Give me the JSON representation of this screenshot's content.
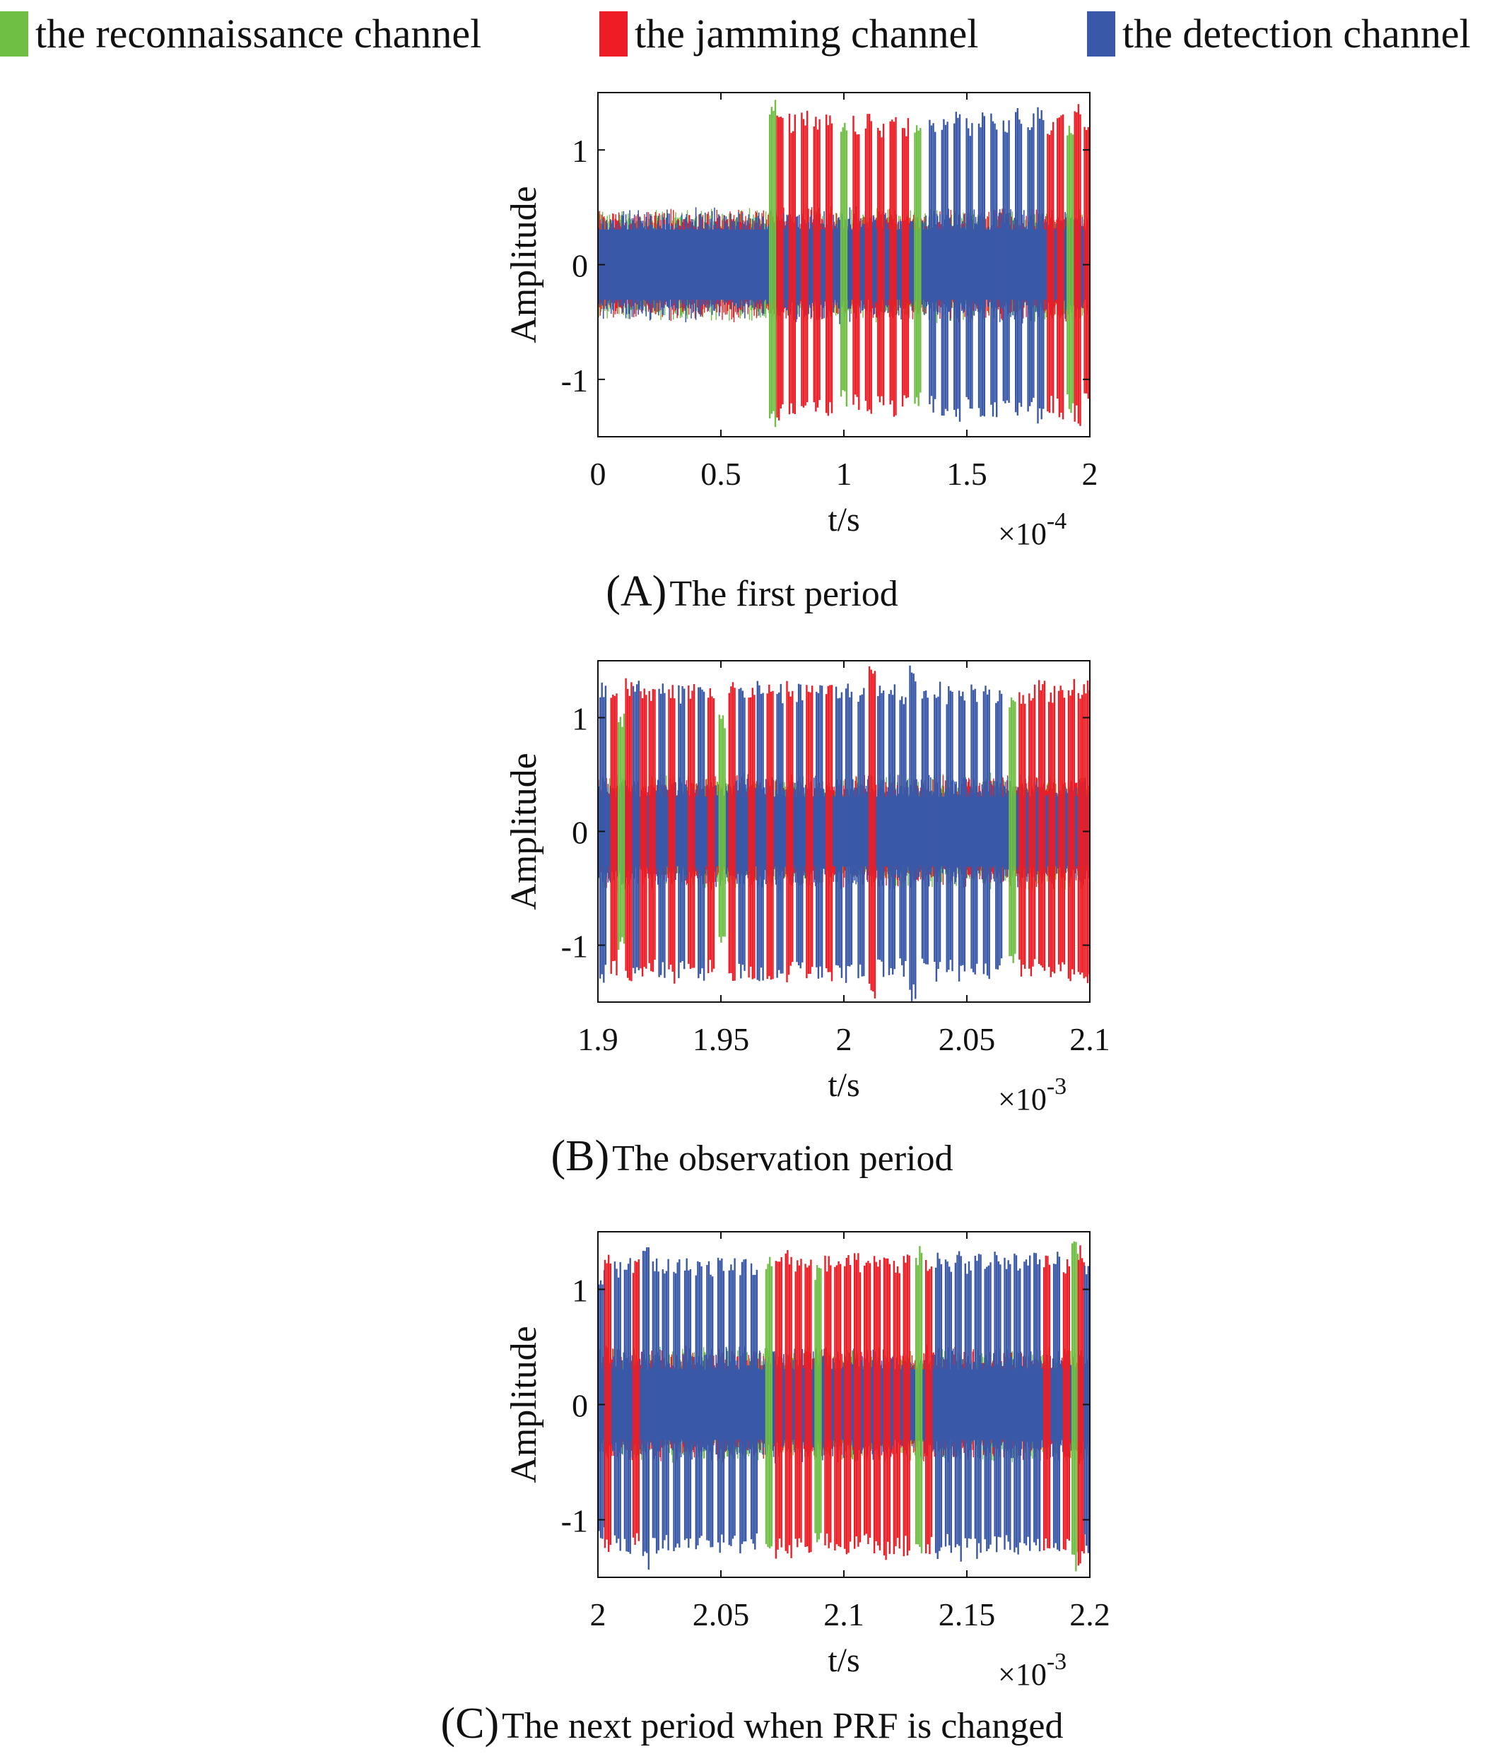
{
  "legend": {
    "items": [
      {
        "label": "the reconnaissance channel",
        "color": "#6fbf44"
      },
      {
        "label": "the jamming channel",
        "color": "#ee1c24"
      },
      {
        "label": "the detection channel",
        "color": "#3a58a8"
      }
    ]
  },
  "captions": [
    {
      "letter": "(A)",
      "text": "The first period"
    },
    {
      "letter": "(B)",
      "text": "The observation period"
    },
    {
      "letter": "(C)",
      "text": "The next period when PRF is changed"
    }
  ],
  "chart_data": [
    {
      "type": "line",
      "xlabel": "t/s",
      "ylabel": "Amplitude",
      "x_multiplier": "×10",
      "x_exponent": "-4",
      "xlim": [
        0,
        2
      ],
      "ylim": [
        -1.5,
        1.5
      ],
      "xticks": [
        0,
        0.5,
        1,
        1.5,
        2
      ],
      "xtick_labels": [
        "0",
        "0.5",
        "1",
        "1.5",
        "2"
      ],
      "yticks": [
        1,
        0,
        -1
      ],
      "ytick_labels": [
        "1",
        "0",
        "-1"
      ],
      "noise_amplitude": 0.45,
      "pulse_start": 0.7,
      "pulses": [
        {
          "series": "the reconnaissance channel",
          "x": 0.71,
          "amplitude": 1.45
        },
        {
          "series": "the jamming channel",
          "x": 0.74,
          "amplitude": 1.38
        },
        {
          "series": "the jamming channel",
          "x": 0.79,
          "amplitude": 1.32
        },
        {
          "series": "the jamming channel",
          "x": 0.84,
          "amplitude": 1.35
        },
        {
          "series": "the jamming channel",
          "x": 0.89,
          "amplitude": 1.3
        },
        {
          "series": "the jamming channel",
          "x": 0.94,
          "amplitude": 1.33
        },
        {
          "series": "the reconnaissance channel",
          "x": 1.0,
          "amplitude": 1.25
        },
        {
          "series": "the jamming channel",
          "x": 1.05,
          "amplitude": 1.3
        },
        {
          "series": "the jamming channel",
          "x": 1.1,
          "amplitude": 1.32
        },
        {
          "series": "the jamming channel",
          "x": 1.15,
          "amplitude": 1.28
        },
        {
          "series": "the jamming channel",
          "x": 1.2,
          "amplitude": 1.33
        },
        {
          "series": "the jamming channel",
          "x": 1.25,
          "amplitude": 1.3
        },
        {
          "series": "the reconnaissance channel",
          "x": 1.3,
          "amplitude": 1.25
        },
        {
          "series": "the detection channel",
          "x": 1.36,
          "amplitude": 1.3
        },
        {
          "series": "the detection channel",
          "x": 1.41,
          "amplitude": 1.33
        },
        {
          "series": "the detection channel",
          "x": 1.46,
          "amplitude": 1.38
        },
        {
          "series": "the detection channel",
          "x": 1.51,
          "amplitude": 1.3
        },
        {
          "series": "the detection channel",
          "x": 1.56,
          "amplitude": 1.33
        },
        {
          "series": "the detection channel",
          "x": 1.61,
          "amplitude": 1.35
        },
        {
          "series": "the detection channel",
          "x": 1.66,
          "amplitude": 1.3
        },
        {
          "series": "the detection channel",
          "x": 1.71,
          "amplitude": 1.38
        },
        {
          "series": "the detection channel",
          "x": 1.76,
          "amplitude": 1.32
        },
        {
          "series": "the detection channel",
          "x": 1.8,
          "amplitude": 1.4
        },
        {
          "series": "the jamming channel",
          "x": 1.84,
          "amplitude": 1.3
        },
        {
          "series": "the jamming channel",
          "x": 1.88,
          "amplitude": 1.35
        },
        {
          "series": "the reconnaissance channel",
          "x": 1.92,
          "amplitude": 1.3
        },
        {
          "series": "the jamming channel",
          "x": 1.95,
          "amplitude": 1.42
        },
        {
          "series": "the jamming channel",
          "x": 1.99,
          "amplitude": 1.3
        }
      ]
    },
    {
      "type": "line",
      "xlabel": "t/s",
      "ylabel": "Amplitude",
      "x_multiplier": "×10",
      "x_exponent": "-3",
      "xlim": [
        1.9,
        2.1
      ],
      "ylim": [
        -1.5,
        1.5
      ],
      "xticks": [
        1.9,
        1.95,
        2,
        2.05,
        2.1
      ],
      "xtick_labels": [
        "1.9",
        "1.95",
        "2",
        "2.05",
        "2.1"
      ],
      "yticks": [
        1,
        0,
        -1
      ],
      "ytick_labels": [
        "1",
        "0",
        "-1"
      ],
      "noise_amplitude": 0.45,
      "pulse_start": 1.9,
      "pulses": [
        {
          "series": "the detection channel",
          "x": 1.902,
          "amplitude": 1.35
        },
        {
          "series": "the jamming channel",
          "x": 1.9065,
          "amplitude": 1.3
        },
        {
          "series": "the reconnaissance channel",
          "x": 1.9095,
          "amplitude": 1.05
        },
        {
          "series": "the jamming channel",
          "x": 1.9125,
          "amplitude": 1.35
        },
        {
          "series": "the detection channel",
          "x": 1.9155,
          "amplitude": 1.38
        },
        {
          "series": "the jamming channel",
          "x": 1.9185,
          "amplitude": 1.32
        },
        {
          "series": "the jamming channel",
          "x": 1.922,
          "amplitude": 1.3
        },
        {
          "series": "the detection channel",
          "x": 1.926,
          "amplitude": 1.33
        },
        {
          "series": "the jamming channel",
          "x": 1.93,
          "amplitude": 1.35
        },
        {
          "series": "the detection channel",
          "x": 1.934,
          "amplitude": 1.3
        },
        {
          "series": "the jamming channel",
          "x": 1.938,
          "amplitude": 1.35
        },
        {
          "series": "the detection channel",
          "x": 1.942,
          "amplitude": 1.32
        },
        {
          "series": "the jamming channel",
          "x": 1.946,
          "amplitude": 1.3
        },
        {
          "series": "the reconnaissance channel",
          "x": 1.9505,
          "amplitude": 1.05
        },
        {
          "series": "the jamming channel",
          "x": 1.9545,
          "amplitude": 1.35
        },
        {
          "series": "the detection channel",
          "x": 1.9585,
          "amplitude": 1.32
        },
        {
          "series": "the jamming channel",
          "x": 1.9625,
          "amplitude": 1.3
        },
        {
          "series": "the detection channel",
          "x": 1.966,
          "amplitude": 1.34
        },
        {
          "series": "the jamming channel",
          "x": 1.97,
          "amplitude": 1.38
        },
        {
          "series": "the detection channel",
          "x": 1.974,
          "amplitude": 1.3
        },
        {
          "series": "the jamming channel",
          "x": 1.978,
          "amplitude": 1.33
        },
        {
          "series": "the detection channel",
          "x": 1.982,
          "amplitude": 1.3
        },
        {
          "series": "the jamming channel",
          "x": 1.986,
          "amplitude": 1.35
        },
        {
          "series": "the detection channel",
          "x": 1.99,
          "amplitude": 1.3
        },
        {
          "series": "the jamming channel",
          "x": 1.994,
          "amplitude": 1.33
        },
        {
          "series": "the detection channel",
          "x": 1.998,
          "amplitude": 1.3
        },
        {
          "series": "the detection channel",
          "x": 2.002,
          "amplitude": 1.35
        },
        {
          "series": "the detection channel",
          "x": 2.007,
          "amplitude": 1.3
        },
        {
          "series": "the jamming channel",
          "x": 2.0115,
          "amplitude": 1.5
        },
        {
          "series": "the detection channel",
          "x": 2.015,
          "amplitude": 1.3
        },
        {
          "series": "the detection channel",
          "x": 2.0195,
          "amplitude": 1.35
        },
        {
          "series": "the detection channel",
          "x": 2.024,
          "amplitude": 1.28
        },
        {
          "series": "the detection channel",
          "x": 2.028,
          "amplitude": 1.5
        },
        {
          "series": "the detection channel",
          "x": 2.033,
          "amplitude": 1.3
        },
        {
          "series": "the detection channel",
          "x": 2.038,
          "amplitude": 1.32
        },
        {
          "series": "the detection channel",
          "x": 2.043,
          "amplitude": 1.3
        },
        {
          "series": "the detection channel",
          "x": 2.048,
          "amplitude": 1.33
        },
        {
          "series": "the detection channel",
          "x": 2.053,
          "amplitude": 1.3
        },
        {
          "series": "the detection channel",
          "x": 2.058,
          "amplitude": 1.32
        },
        {
          "series": "the detection channel",
          "x": 2.063,
          "amplitude": 1.28
        },
        {
          "series": "the reconnaissance channel",
          "x": 2.0685,
          "amplitude": 1.2
        },
        {
          "series": "the jamming channel",
          "x": 2.0725,
          "amplitude": 1.3
        },
        {
          "series": "the jamming channel",
          "x": 2.0765,
          "amplitude": 1.3
        },
        {
          "series": "the jamming channel",
          "x": 2.0805,
          "amplitude": 1.33
        },
        {
          "series": "the jamming channel",
          "x": 2.0845,
          "amplitude": 1.3
        },
        {
          "series": "the jamming channel",
          "x": 2.0885,
          "amplitude": 1.3
        },
        {
          "series": "the jamming channel",
          "x": 2.0925,
          "amplitude": 1.35
        },
        {
          "series": "the jamming channel",
          "x": 2.0965,
          "amplitude": 1.3
        },
        {
          "series": "the jamming channel",
          "x": 2.0995,
          "amplitude": 1.35
        }
      ]
    },
    {
      "type": "line",
      "xlabel": "t/s",
      "ylabel": "Amplitude",
      "x_multiplier": "×10",
      "x_exponent": "-3",
      "xlim": [
        2,
        2.2
      ],
      "ylim": [
        -1.5,
        1.5
      ],
      "xticks": [
        2,
        2.05,
        2.1,
        2.15,
        2.2
      ],
      "xtick_labels": [
        "2",
        "2.05",
        "2.1",
        "2.15",
        "2.2"
      ],
      "yticks": [
        1,
        0,
        -1
      ],
      "ytick_labels": [
        "1",
        "0",
        "-1"
      ],
      "noise_amplitude": 0.45,
      "pulse_start": 2.0,
      "pulses": [
        {
          "series": "the detection channel",
          "x": 2.0015,
          "amplitude": 1.2
        },
        {
          "series": "the jamming channel",
          "x": 2.004,
          "amplitude": 1.3
        },
        {
          "series": "the detection channel",
          "x": 2.008,
          "amplitude": 1.28
        },
        {
          "series": "the detection channel",
          "x": 2.012,
          "amplitude": 1.3
        },
        {
          "series": "the jamming channel",
          "x": 2.0155,
          "amplitude": 1.28
        },
        {
          "series": "the detection channel",
          "x": 2.0195,
          "amplitude": 1.45
        },
        {
          "series": "the detection channel",
          "x": 2.0235,
          "amplitude": 1.3
        },
        {
          "series": "the detection channel",
          "x": 2.0275,
          "amplitude": 1.28
        },
        {
          "series": "the detection channel",
          "x": 2.032,
          "amplitude": 1.3
        },
        {
          "series": "the detection channel",
          "x": 2.0365,
          "amplitude": 1.28
        },
        {
          "series": "the detection channel",
          "x": 2.041,
          "amplitude": 1.3
        },
        {
          "series": "the detection channel",
          "x": 2.0455,
          "amplitude": 1.28
        },
        {
          "series": "the detection channel",
          "x": 2.05,
          "amplitude": 1.3
        },
        {
          "series": "the detection channel",
          "x": 2.0545,
          "amplitude": 1.28
        },
        {
          "series": "the detection channel",
          "x": 2.059,
          "amplitude": 1.3
        },
        {
          "series": "the detection channel",
          "x": 2.0635,
          "amplitude": 1.28
        },
        {
          "series": "the reconnaissance channel",
          "x": 2.0695,
          "amplitude": 1.3
        },
        {
          "series": "the jamming channel",
          "x": 2.0735,
          "amplitude": 1.35
        },
        {
          "series": "the jamming channel",
          "x": 2.0775,
          "amplitude": 1.38
        },
        {
          "series": "the jamming channel",
          "x": 2.0815,
          "amplitude": 1.3
        },
        {
          "series": "the jamming channel",
          "x": 2.0855,
          "amplitude": 1.32
        },
        {
          "series": "the reconnaissance channel",
          "x": 2.0895,
          "amplitude": 1.25
        },
        {
          "series": "the jamming channel",
          "x": 2.0935,
          "amplitude": 1.3
        },
        {
          "series": "the jamming channel",
          "x": 2.0975,
          "amplitude": 1.33
        },
        {
          "series": "the jamming channel",
          "x": 2.1015,
          "amplitude": 1.3
        },
        {
          "series": "the jamming channel",
          "x": 2.1055,
          "amplitude": 1.32
        },
        {
          "series": "the jamming channel",
          "x": 2.1095,
          "amplitude": 1.28
        },
        {
          "series": "the jamming channel",
          "x": 2.1135,
          "amplitude": 1.3
        },
        {
          "series": "the jamming channel",
          "x": 2.1175,
          "amplitude": 1.35
        },
        {
          "series": "the jamming channel",
          "x": 2.1215,
          "amplitude": 1.3
        },
        {
          "series": "the jamming channel",
          "x": 2.1255,
          "amplitude": 1.32
        },
        {
          "series": "the reconnaissance channel",
          "x": 2.1305,
          "amplitude": 1.4
        },
        {
          "series": "the jamming channel",
          "x": 2.1345,
          "amplitude": 1.3
        },
        {
          "series": "the detection channel",
          "x": 2.1385,
          "amplitude": 1.35
        },
        {
          "series": "the detection channel",
          "x": 2.1425,
          "amplitude": 1.3
        },
        {
          "series": "the detection channel",
          "x": 2.1465,
          "amplitude": 1.38
        },
        {
          "series": "the detection channel",
          "x": 2.1505,
          "amplitude": 1.3
        },
        {
          "series": "the detection channel",
          "x": 2.1545,
          "amplitude": 1.35
        },
        {
          "series": "the detection channel",
          "x": 2.1585,
          "amplitude": 1.3
        },
        {
          "series": "the detection channel",
          "x": 2.1625,
          "amplitude": 1.33
        },
        {
          "series": "the detection channel",
          "x": 2.1665,
          "amplitude": 1.3
        },
        {
          "series": "the detection channel",
          "x": 2.1705,
          "amplitude": 1.35
        },
        {
          "series": "the detection channel",
          "x": 2.1745,
          "amplitude": 1.3
        },
        {
          "series": "the detection channel",
          "x": 2.1785,
          "amplitude": 1.32
        },
        {
          "series": "the jamming channel",
          "x": 2.1825,
          "amplitude": 1.3
        },
        {
          "series": "the detection channel",
          "x": 2.1865,
          "amplitude": 1.35
        },
        {
          "series": "the jamming channel",
          "x": 2.1905,
          "amplitude": 1.3
        },
        {
          "series": "the reconnaissance channel",
          "x": 2.194,
          "amplitude": 1.45
        },
        {
          "series": "the jamming channel",
          "x": 2.1965,
          "amplitude": 1.42
        },
        {
          "series": "the detection channel",
          "x": 2.199,
          "amplitude": 1.3
        }
      ]
    }
  ]
}
